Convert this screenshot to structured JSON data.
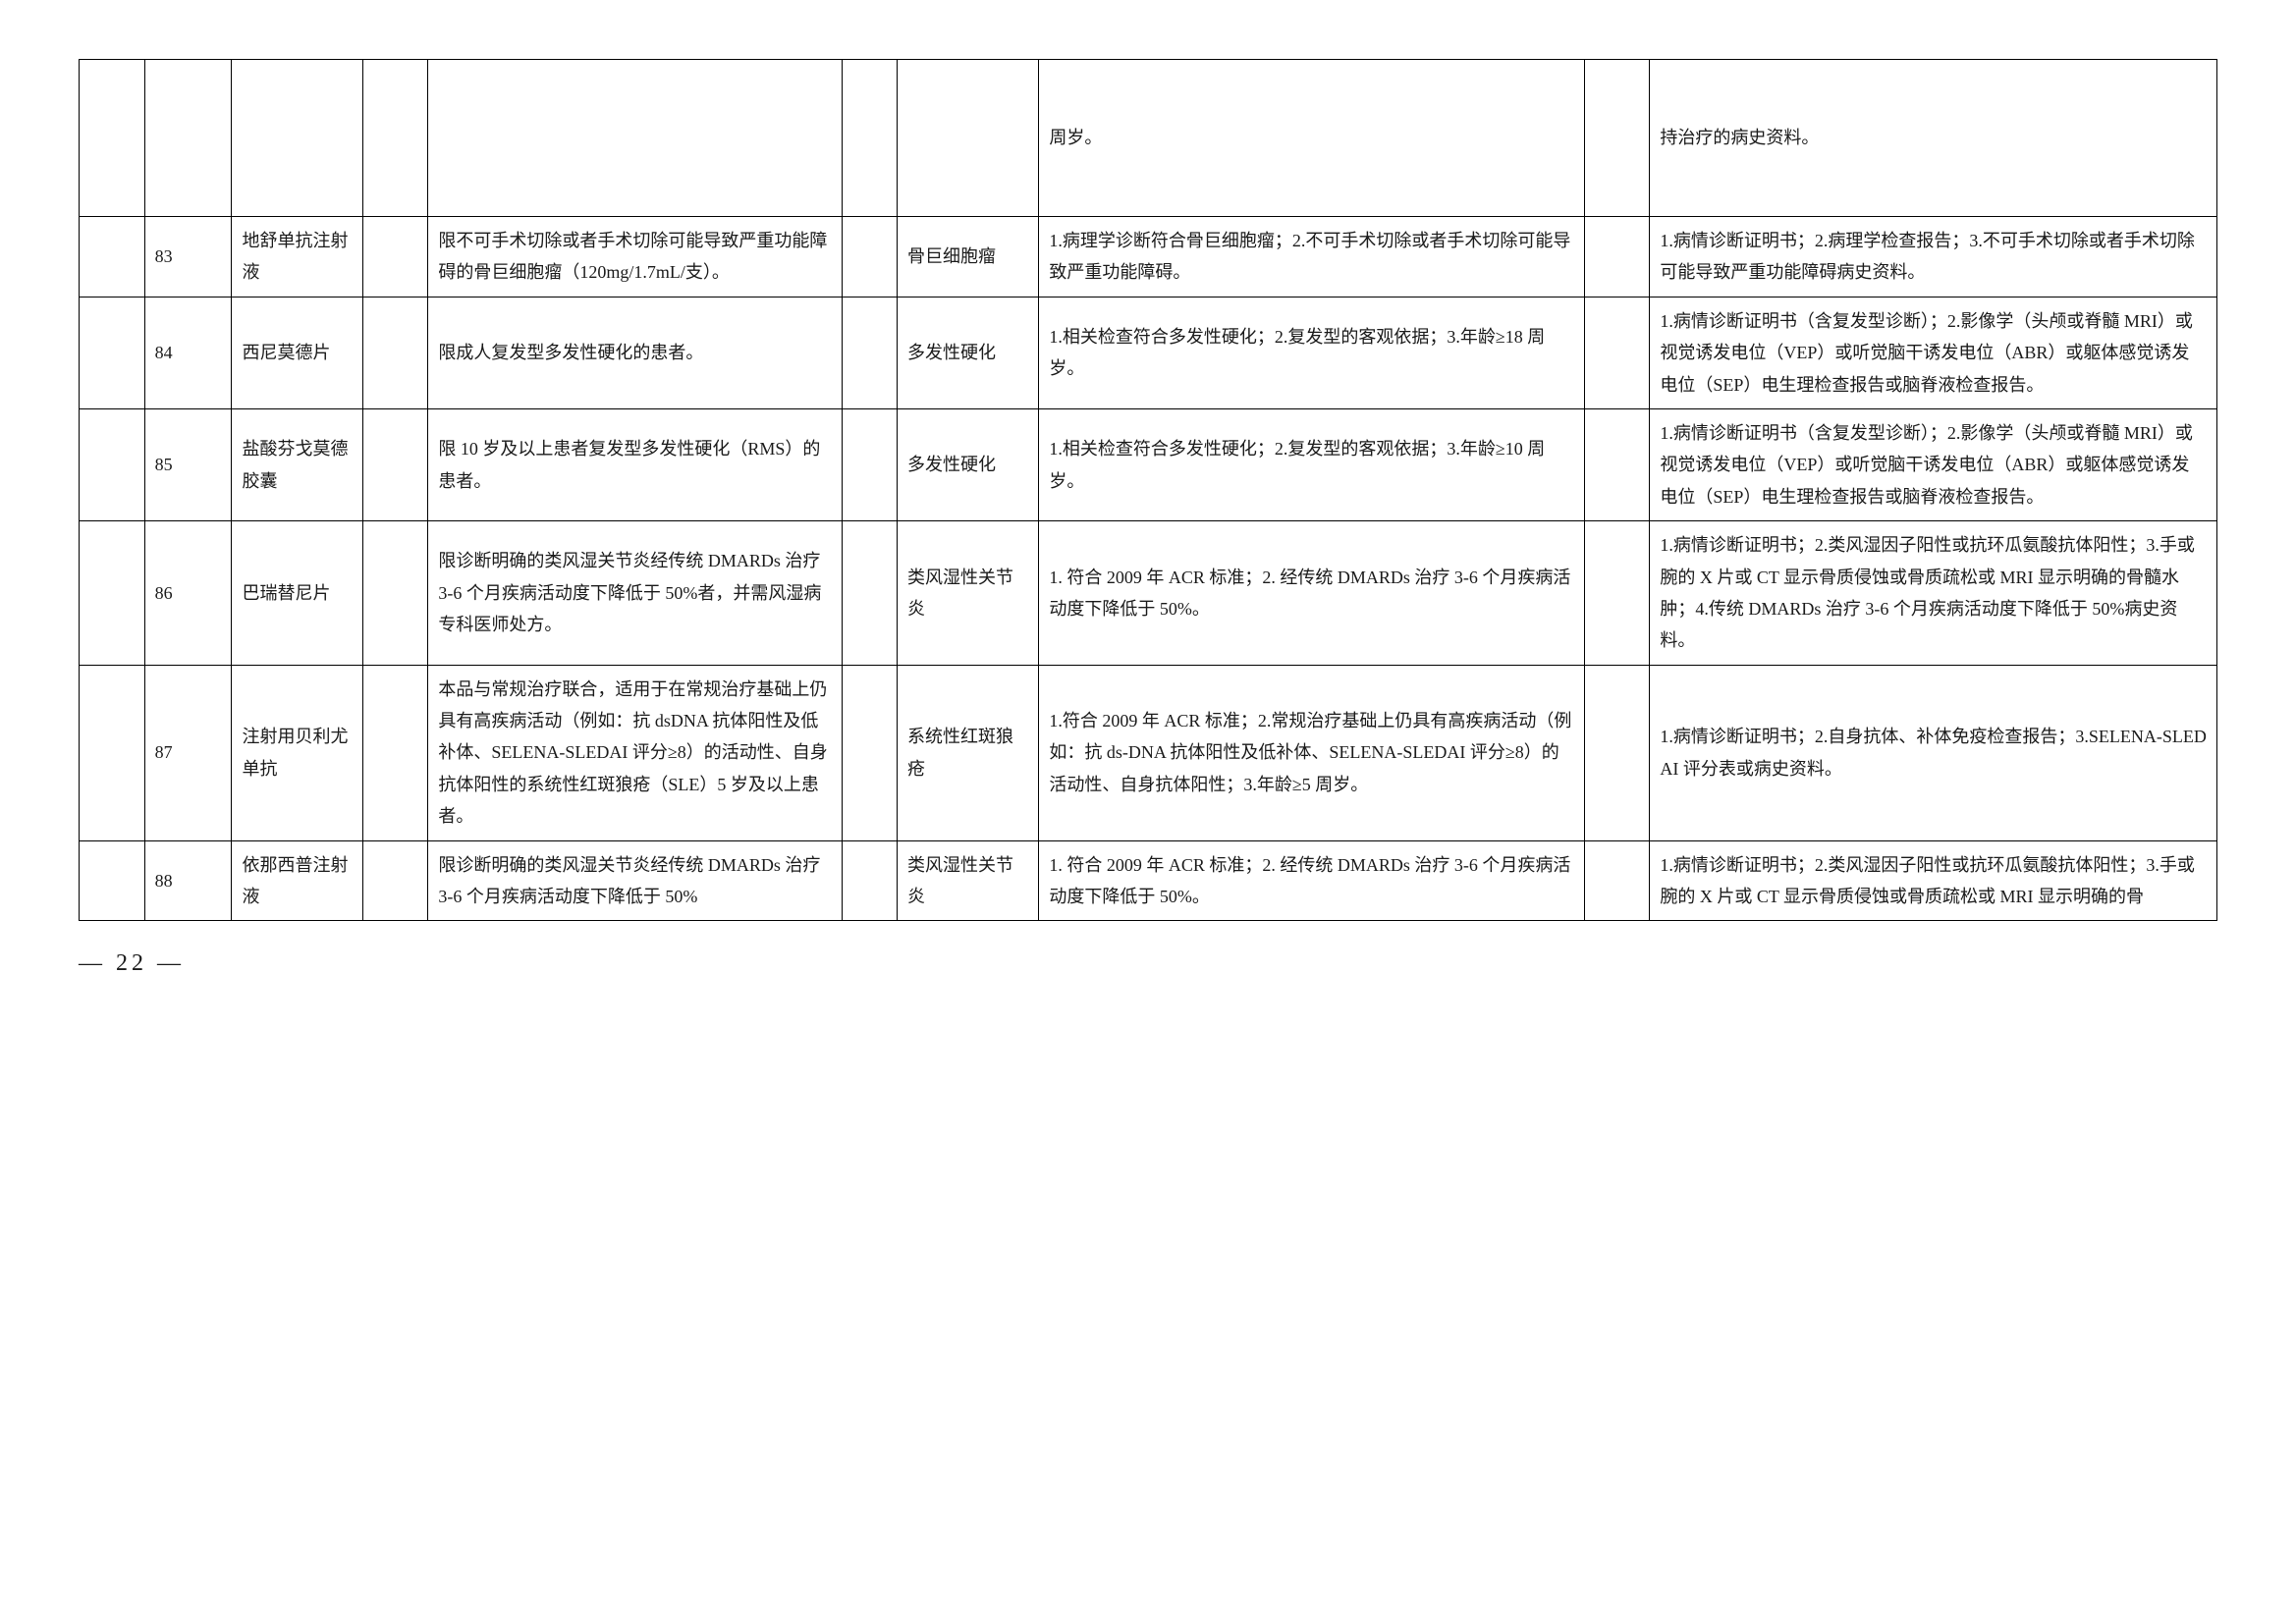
{
  "page_number": "— 22 —",
  "rows": [
    {
      "num": "",
      "drug": "",
      "limit": "",
      "disease": "",
      "criteria": "周岁。",
      "docs": "持治疗的病史资料。"
    },
    {
      "num": "83",
      "drug": "地舒单抗注射液",
      "limit": "限不可手术切除或者手术切除可能导致严重功能障碍的骨巨细胞瘤（120mg/1.7mL/支）。",
      "disease": "骨巨细胞瘤",
      "criteria": "1.病理学诊断符合骨巨细胞瘤；2.不可手术切除或者手术切除可能导致严重功能障碍。",
      "docs": "1.病情诊断证明书；2.病理学检查报告；3.不可手术切除或者手术切除可能导致严重功能障碍病史资料。"
    },
    {
      "num": "84",
      "drug": "西尼莫德片",
      "limit": "限成人复发型多发性硬化的患者。",
      "disease": "多发性硬化",
      "criteria": "1.相关检查符合多发性硬化；2.复发型的客观依据；3.年龄≥18 周岁。",
      "docs": "1.病情诊断证明书（含复发型诊断）；2.影像学（头颅或脊髓 MRI）或视觉诱发电位（VEP）或听觉脑干诱发电位（ABR）或躯体感觉诱发电位（SEP）电生理检查报告或脑脊液检查报告。"
    },
    {
      "num": "85",
      "drug": "盐酸芬戈莫德胶囊",
      "limit": "限 10 岁及以上患者复发型多发性硬化（RMS）的患者。",
      "disease": "多发性硬化",
      "criteria": "1.相关检查符合多发性硬化；2.复发型的客观依据；3.年龄≥10 周岁。",
      "docs": "1.病情诊断证明书（含复发型诊断）；2.影像学（头颅或脊髓 MRI）或视觉诱发电位（VEP）或听觉脑干诱发电位（ABR）或躯体感觉诱发电位（SEP）电生理检查报告或脑脊液检查报告。"
    },
    {
      "num": "86",
      "drug": "巴瑞替尼片",
      "limit": "限诊断明确的类风湿关节炎经传统 DMARDs 治疗 3-6 个月疾病活动度下降低于 50%者，并需风湿病专科医师处方。",
      "disease": "类风湿性关节炎",
      "criteria": "1. 符合 2009 年 ACR 标准；2. 经传统 DMARDs 治疗 3-6 个月疾病活动度下降低于 50%。",
      "docs": "1.病情诊断证明书；2.类风湿因子阳性或抗环瓜氨酸抗体阳性；3.手或腕的 X 片或 CT 显示骨质侵蚀或骨质疏松或 MRI 显示明确的骨髓水肿；4.传统 DMARDs 治疗 3-6 个月疾病活动度下降低于 50%病史资料。"
    },
    {
      "num": "87",
      "drug": "注射用贝利尤单抗",
      "limit": "本品与常规治疗联合，适用于在常规治疗基础上仍具有高疾病活动（例如：抗 dsDNA 抗体阳性及低补体、SELENA-SLEDAI 评分≥8）的活动性、自身抗体阳性的系统性红斑狼疮（SLE）5 岁及以上患者。",
      "disease": "系统性红斑狼疮",
      "criteria": "1.符合 2009 年 ACR 标准；2.常规治疗基础上仍具有高疾病活动（例如：抗 ds-DNA 抗体阳性及低补体、SELENA-SLEDAI 评分≥8）的活动性、自身抗体阳性；3.年龄≥5 周岁。",
      "docs": "1.病情诊断证明书；2.自身抗体、补体免疫检查报告；3.SELENA-SLEDAI 评分表或病史资料。"
    },
    {
      "num": "88",
      "drug": "依那西普注射液",
      "limit": "限诊断明确的类风湿关节炎经传统 DMARDs 治疗 3-6 个月疾病活动度下降低于 50%",
      "disease": "类风湿性关节炎",
      "criteria": "1. 符合 2009 年 ACR 标准；2. 经传统 DMARDs 治疗 3-6 个月疾病活动度下降低于 50%。",
      "docs": "1.病情诊断证明书；2.类风湿因子阳性或抗环瓜氨酸抗体阳性；3.手或腕的 X 片或 CT 显示骨质侵蚀或骨质疏松或 MRI 显示明确的骨"
    }
  ]
}
